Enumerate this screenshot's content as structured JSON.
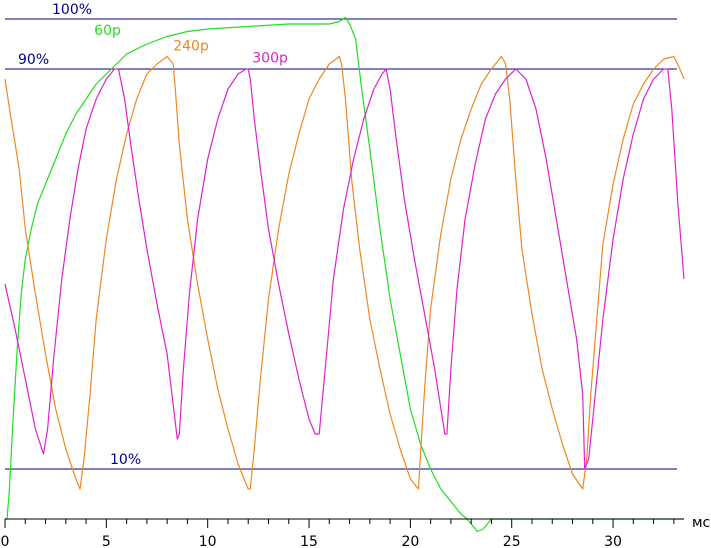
{
  "chart_data": {
    "type": "line",
    "xlabel": "мс",
    "xlim": [
      0,
      33.5
    ],
    "ylim": [
      0,
      100
    ],
    "x_ticks": [
      0,
      5,
      10,
      15,
      20,
      25,
      30
    ],
    "grid": false,
    "reference_lines": [
      {
        "label": "100%",
        "y": 100,
        "color": "#00008b"
      },
      {
        "label": "90%",
        "y": 90,
        "color": "#00008b"
      },
      {
        "label": "10%",
        "y": 10,
        "color": "#00008b"
      }
    ],
    "series": [
      {
        "name": "60p",
        "color": "#22dd22",
        "x": [
          0,
          0.1,
          0.2,
          0.4,
          0.6,
          0.8,
          1.0,
          1.3,
          1.6,
          2.0,
          2.5,
          3.0,
          3.5,
          4.0,
          4.5,
          5.0,
          5.5,
          6.0,
          7.0,
          8.0,
          9.0,
          10.0,
          12.0,
          14.0,
          16.0,
          16.5,
          16.8,
          17.0,
          17.3,
          17.6,
          18.0,
          18.5,
          19.0,
          19.5,
          20.0,
          20.5,
          21.0,
          21.5,
          22.0,
          22.5,
          22.8,
          23.0,
          23.3,
          23.6,
          24.0,
          25.0,
          27.0,
          30.0,
          33.5
        ],
        "y": [
          0,
          0,
          5,
          20,
          34,
          45,
          52,
          58,
          63,
          67,
          72,
          77,
          81,
          84,
          87,
          89,
          91,
          93,
          95,
          96.5,
          97.5,
          98,
          98.5,
          99,
          99,
          99.5,
          100.3,
          99,
          96,
          86,
          74,
          58,
          44,
          33,
          22,
          15,
          10,
          6,
          3.5,
          1,
          0,
          -1,
          -2.5,
          -2,
          0,
          0,
          0,
          0,
          0
        ]
      },
      {
        "name": "240p",
        "color": "#ee8822",
        "x": [
          0,
          0.3,
          0.7,
          1.0,
          1.5,
          2.0,
          2.5,
          3.0,
          3.5,
          3.7,
          3.9,
          4.2,
          4.5,
          5.0,
          5.5,
          6.0,
          6.5,
          7.0,
          7.5,
          8.0,
          8.3,
          8.4,
          8.6,
          9.0,
          9.5,
          10.0,
          10.5,
          11.0,
          11.5,
          12.0,
          12.1,
          12.3,
          12.6,
          13.0,
          13.5,
          14.0,
          14.5,
          15.0,
          15.5,
          16.0,
          16.5,
          16.6,
          16.8,
          17.1,
          17.5,
          18.0,
          18.5,
          19.0,
          19.5,
          20.0,
          20.4,
          20.5,
          20.7,
          21.0,
          21.5,
          22.0,
          22.5,
          23.0,
          23.5,
          24.0,
          24.5,
          24.7,
          24.9,
          25.2,
          25.5,
          26.0,
          26.5,
          27.0,
          27.5,
          28.0,
          28.5,
          28.7,
          28.9,
          29.2,
          29.5,
          30.0,
          30.5,
          31.0,
          31.5,
          32.0,
          32.5,
          33.0,
          33.3,
          33.5
        ],
        "y": [
          88,
          80,
          70,
          58,
          45,
          33,
          22,
          14,
          8,
          6,
          12,
          25,
          40,
          56,
          68,
          77,
          84,
          89,
          91,
          92.5,
          91,
          86,
          75,
          60,
          47,
          36,
          26,
          18,
          11,
          6,
          6,
          14,
          28,
          44,
          58,
          69,
          77,
          84,
          88,
          91,
          92.5,
          91,
          84,
          68,
          54,
          40,
          30,
          21,
          14,
          8,
          6,
          13,
          26,
          42,
          57,
          68,
          76,
          82,
          87,
          90,
          92.5,
          91,
          84,
          68,
          54,
          41,
          30,
          22,
          15,
          9,
          6,
          12,
          25,
          40,
          55,
          67,
          76,
          83,
          87,
          90,
          92,
          92.5,
          90,
          88
        ]
      },
      {
        "name": "300p",
        "color": "#dd22cc",
        "x": [
          0,
          0.5,
          1.0,
          1.5,
          1.9,
          2.1,
          2.4,
          2.8,
          3.2,
          3.6,
          4.0,
          4.5,
          5.0,
          5.4,
          5.6,
          5.9,
          6.2,
          6.6,
          7.0,
          7.5,
          8.0,
          8.5,
          8.6,
          8.8,
          9.1,
          9.5,
          10.0,
          10.5,
          11.0,
          11.5,
          11.9,
          12.0,
          12.1,
          12.3,
          12.6,
          13.0,
          13.5,
          14.0,
          14.5,
          15.0,
          15.3,
          15.5,
          15.8,
          16.2,
          16.7,
          17.2,
          17.7,
          18.2,
          18.6,
          18.8,
          19.0,
          19.3,
          19.7,
          20.2,
          20.7,
          21.2,
          21.7,
          21.8,
          22.0,
          22.3,
          22.7,
          23.2,
          23.7,
          24.2,
          24.7,
          25.2,
          25.7,
          26.2,
          26.7,
          27.2,
          27.7,
          28.2,
          28.5,
          28.6,
          28.8,
          29.1,
          29.5,
          30.0,
          30.5,
          31.0,
          31.5,
          32.0,
          32.5,
          32.7,
          32.9,
          33.2,
          33.5
        ],
        "y": [
          47,
          38,
          28,
          18,
          13,
          18,
          32,
          48,
          60,
          70,
          78,
          84,
          88,
          90,
          90,
          84,
          75,
          64,
          54,
          43,
          33,
          16,
          17,
          30,
          45,
          60,
          72,
          80,
          86,
          89,
          90,
          90,
          88,
          80,
          70,
          58,
          47,
          37,
          28,
          20,
          17,
          17,
          30,
          48,
          62,
          72,
          80,
          86,
          89,
          90,
          86,
          76,
          64,
          52,
          41,
          30,
          17,
          17,
          30,
          46,
          60,
          71,
          80,
          85,
          88,
          90,
          88,
          82,
          72,
          60,
          48,
          36,
          25,
          10,
          12,
          24,
          40,
          56,
          68,
          77,
          84,
          88,
          90,
          90,
          82,
          63,
          48
        ]
      }
    ],
    "series_labels": [
      {
        "name": "60p",
        "x": 4.4,
        "y": 96.8
      },
      {
        "name": "240p",
        "x": 8.3,
        "y": 93.7
      },
      {
        "name": "300p",
        "x": 12.2,
        "y": 91.3
      }
    ]
  }
}
